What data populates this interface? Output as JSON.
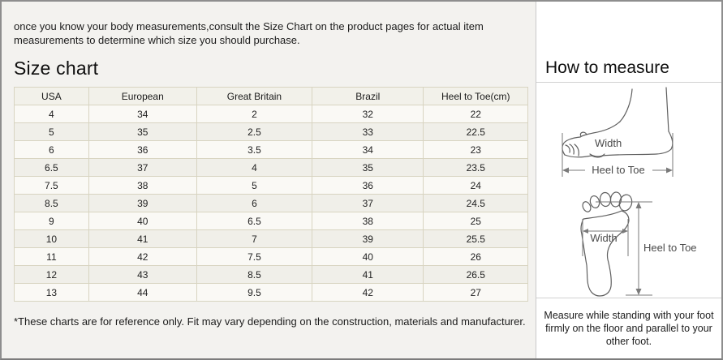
{
  "intro_text": "once you know your body measurements,consult the Size Chart on the product pages for actual item measurements to determine which size you should purchase.",
  "size_chart": {
    "title": "Size chart",
    "table": {
      "headers": [
        "USA",
        "European",
        "Great Britain",
        "Brazil",
        "Heel to Toe(cm)"
      ],
      "rows": [
        [
          "4",
          "34",
          "2",
          "32",
          "22"
        ],
        [
          "5",
          "35",
          "2.5",
          "33",
          "22.5"
        ],
        [
          "6",
          "36",
          "3.5",
          "34",
          "23"
        ],
        [
          "6.5",
          "37",
          "4",
          "35",
          "23.5"
        ],
        [
          "7.5",
          "38",
          "5",
          "36",
          "24"
        ],
        [
          "8.5",
          "39",
          "6",
          "37",
          "24.5"
        ],
        [
          "9",
          "40",
          "6.5",
          "38",
          "25"
        ],
        [
          "10",
          "41",
          "7",
          "39",
          "25.5"
        ],
        [
          "11",
          "42",
          "7.5",
          "40",
          "26"
        ],
        [
          "12",
          "43",
          "8.5",
          "41",
          "26.5"
        ],
        [
          "13",
          "44",
          "9.5",
          "42",
          "27"
        ]
      ]
    },
    "footnote": "*These charts are for reference only. Fit may vary depending on the construction, materials and manufacturer."
  },
  "how_to_measure": {
    "title": "How to measure",
    "side_view": {
      "width_label": "Width",
      "heel_to_toe_label": "Heel to Toe"
    },
    "sole_view": {
      "width_label": "Width",
      "heel_to_toe_label": "Heel to Toe"
    },
    "instructions": "Measure while standing with your foot firmly on the floor and parallel to your other foot."
  },
  "colors": {
    "left_background": "#f3f2ef",
    "right_background": "#ffffff",
    "table_border": "#d8d4c1",
    "outer_border": "#8e8e8e"
  }
}
